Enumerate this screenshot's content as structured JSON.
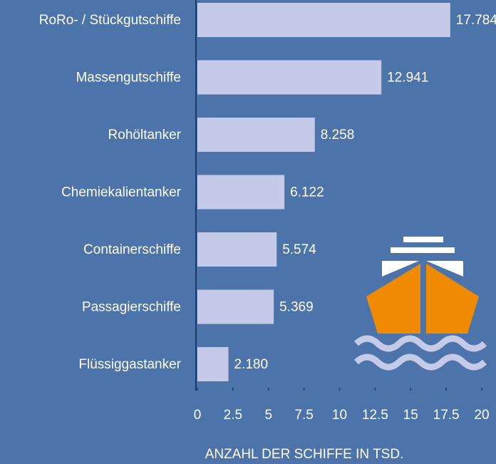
{
  "chart_data": {
    "type": "bar",
    "orientation": "horizontal",
    "x_label": "ANZAHL DER SCHIFFE IN TSD.",
    "categories": [
      "RoRo- / Stückgutschiffe",
      "Massengutschiffe",
      "Rohöltanker",
      "Chemiekalientanker",
      "Containerschiffe",
      "Passagierschiffe",
      "Flüssiggastanker"
    ],
    "values": [
      17.784,
      12.941,
      8.258,
      6.122,
      5.574,
      5.369,
      2.18
    ],
    "value_labels": [
      "17.784",
      "12.941",
      "8.258",
      "6.122",
      "5.574",
      "5.369",
      "2.180"
    ],
    "color": "#c5cae8",
    "xlim": [
      0,
      20
    ],
    "xticks": [
      0,
      2.5,
      5,
      7.5,
      10,
      12.5,
      15,
      17.5,
      20
    ]
  }
}
